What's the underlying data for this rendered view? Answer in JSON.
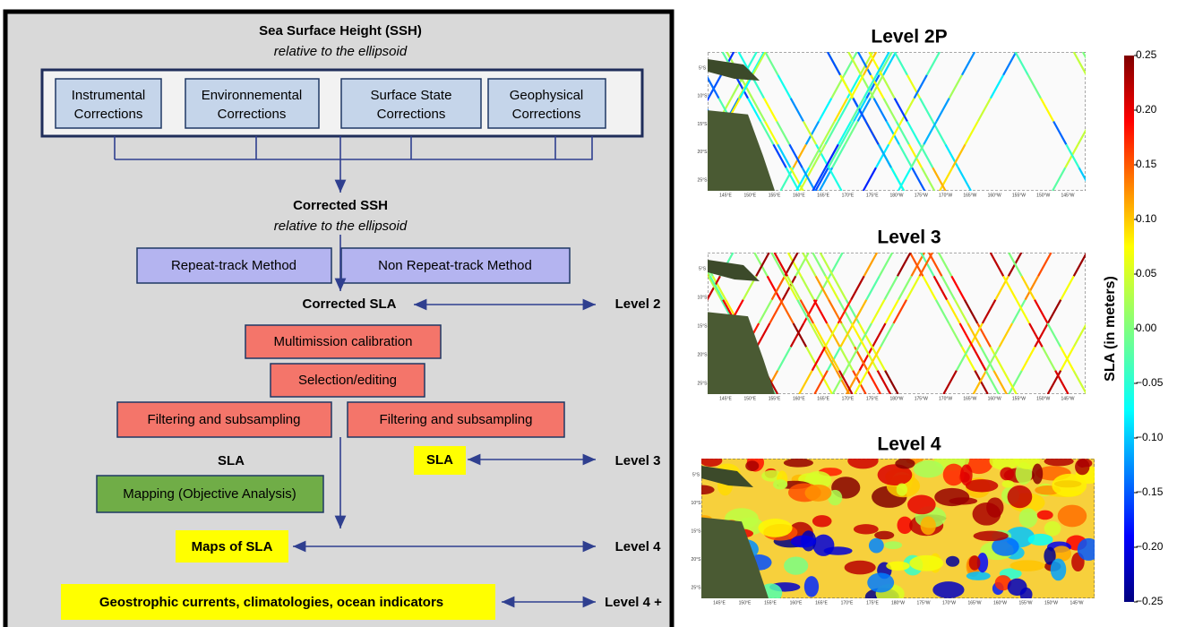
{
  "flow": {
    "title": "Sea Surface Height (SSH)",
    "title_note": "relative to the ellipsoid",
    "corrections": [
      [
        "Instrumental",
        "Corrections"
      ],
      [
        "Environnemental",
        "Corrections"
      ],
      [
        "Surface State",
        "Corrections"
      ],
      [
        "Geophysical",
        "Corrections"
      ]
    ],
    "corrected_ssh": "Corrected SSH",
    "corrected_ssh_note": "relative to the ellipsoid",
    "methods": [
      "Repeat-track Method",
      "Non Repeat-track Method"
    ],
    "corrected_sla": "Corrected SLA",
    "processing": [
      "Multimission calibration",
      "Selection/editing",
      "Filtering and subsampling",
      "Filtering and subsampling"
    ],
    "sla": "SLA",
    "sla_level3": "SLA",
    "mapping": "Mapping (Objective Analysis)",
    "maps": "Maps of SLA",
    "products": "Geostrophic currents, climatologies, ocean indicators",
    "levels": [
      "Level 2",
      "Level 3",
      "Level 4",
      "Level 4 +"
    ]
  },
  "panels": {
    "titles": [
      "Level 2P",
      "Level 3",
      "Level 4"
    ],
    "x_labels": [
      "145°E",
      "150°E",
      "155°E",
      "160°E",
      "165°E",
      "170°E",
      "175°E",
      "180°W",
      "175°W",
      "170°W",
      "165°W",
      "160°W",
      "155°W",
      "150°W",
      "145°W"
    ],
    "y_labels": [
      "5°S",
      "10°S",
      "15°S",
      "20°S",
      "25°S"
    ]
  },
  "colorbar": {
    "label": "SLA (in meters)",
    "lim": [
      -0.25,
      0.25
    ],
    "ticks": [
      0.25,
      {
        "value": 0.2,
        "label": "0.20"
      },
      0.15,
      {
        "value": 0.1,
        "label": "0.10"
      },
      0.05,
      {
        "value": 0,
        "label": "0.00"
      },
      {
        "value": -0.05,
        "label": "−0.05"
      },
      {
        "value": -0.1,
        "label": "−0.10"
      },
      {
        "value": -0.15,
        "label": "−0.15"
      },
      {
        "value": -0.2,
        "label": "−0.20"
      },
      {
        "value": -0.25,
        "label": "−0.25"
      }
    ]
  }
}
